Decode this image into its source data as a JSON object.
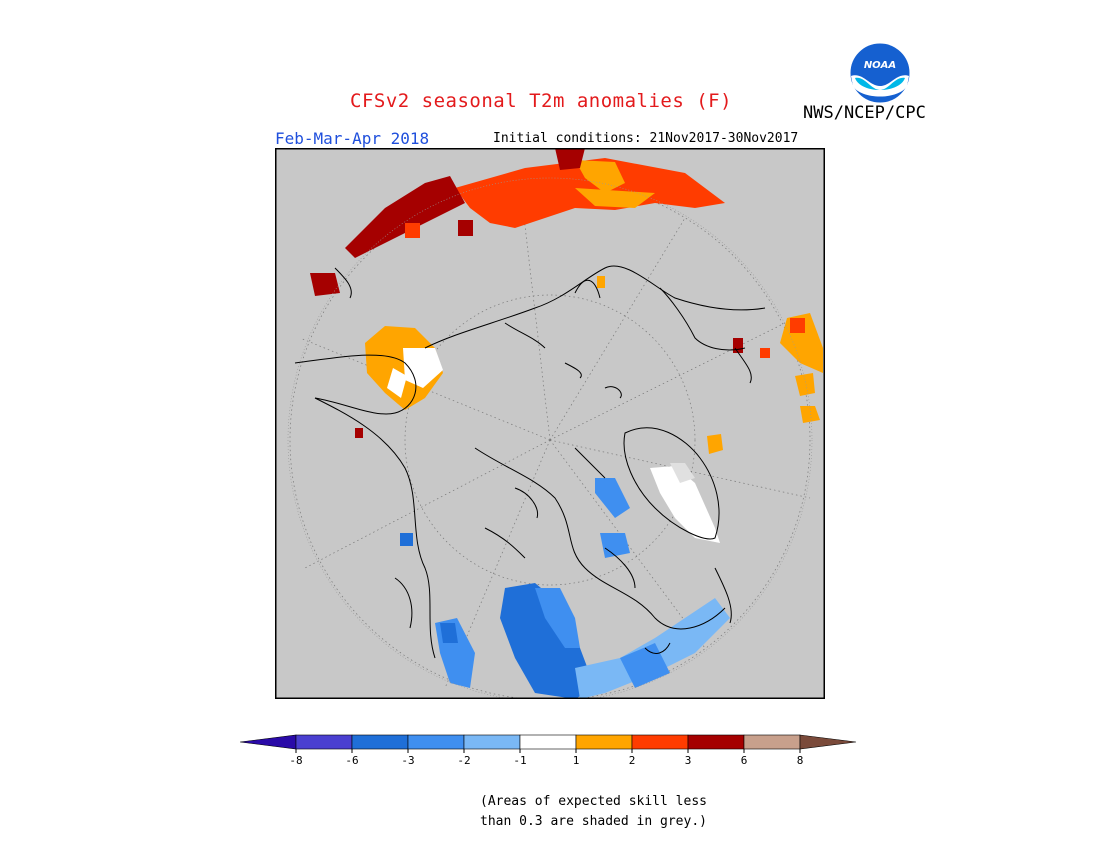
{
  "header": {
    "title": "CFSv2 seasonal T2m anomalies (F)",
    "period": "Feb-Mar-Apr 2018",
    "initial_conditions": "Initial conditions: 21Nov2017-30Nov2017",
    "agency": "NWS/NCEP/CPC",
    "logo_text": "NOAA"
  },
  "legend": {
    "tick_labels": [
      "-8",
      "-6",
      "-3",
      "-2",
      "-1",
      "1",
      "2",
      "3",
      "6",
      "8"
    ],
    "colors": [
      "#2a0aa8",
      "#4a3fd0",
      "#1f6fd8",
      "#3f8ff0",
      "#7ab8f5",
      "#ffffff",
      "#ffa500",
      "#ff3c00",
      "#a50000",
      "#c8a08c",
      "#7a4a3a"
    ]
  },
  "note": {
    "line1": "(Areas of expected skill less",
    "line2": "than 0.3 are shaded in grey.)"
  },
  "colors": {
    "map_background": "#c8c8c8",
    "title": "#e31a1c",
    "period": "#1f4fdc"
  }
}
